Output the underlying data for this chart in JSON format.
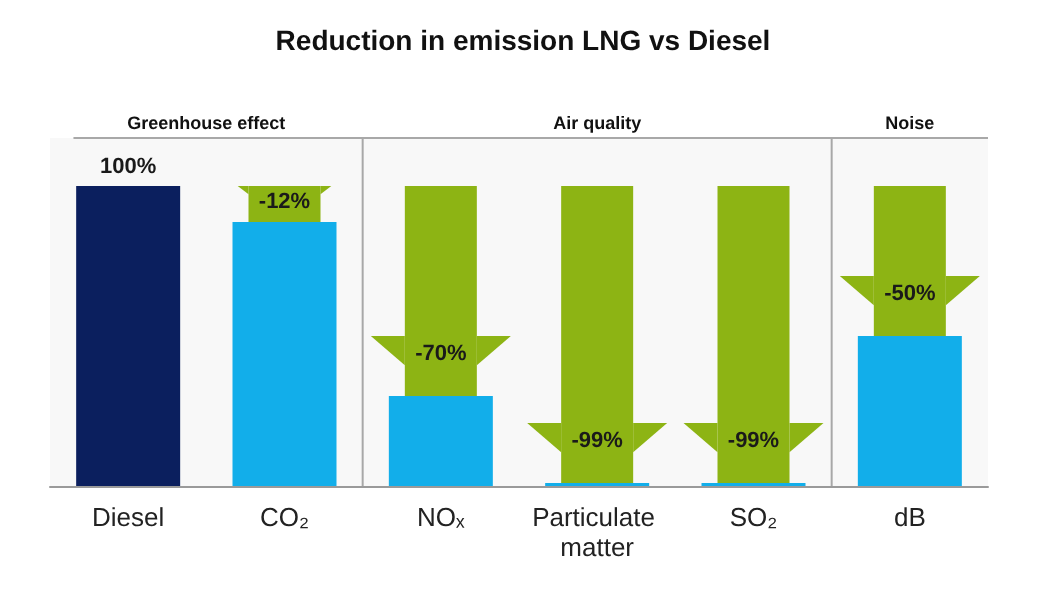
{
  "chart_data": {
    "type": "bar",
    "title": "Reduction in emission LNG vs Diesel",
    "categories": [
      "Diesel",
      "CO₂",
      "NOₓ",
      "Particulate matter",
      "SO₂",
      "dB"
    ],
    "stacked": true,
    "tick_labels": "x",
    "series": [
      {
        "colors": [
          "#0b1f5e",
          "#12aeea",
          "#12aeea",
          "#12aeea",
          "#12aeea",
          "#12aeea"
        ],
        "values": [
          100,
          88,
          30,
          1,
          1,
          50
        ],
        "value_labels": [
          "100%",
          null,
          null,
          null,
          null,
          null
        ]
      },
      {
        "color": "#8db414",
        "values": [
          null,
          12,
          70,
          99,
          99,
          50
        ]
      }
    ],
    "annotations": [
      "-12%",
      "-70%",
      "-99%",
      "-99%",
      "-50%"
    ],
    "bands": [
      {
        "axis": "x",
        "from": "Diesel",
        "to": "CO₂",
        "label": "Greenhouse effect",
        "color": "#f8f8f8"
      },
      {
        "axis": "x",
        "from": "NOₓ",
        "to": "SO₂",
        "label": "Air quality",
        "color": "#f8f8f8"
      },
      {
        "axis": "x",
        "from": "dB",
        "to": "dB",
        "label": "Noise",
        "color": "#f8f8f8"
      }
    ]
  }
}
